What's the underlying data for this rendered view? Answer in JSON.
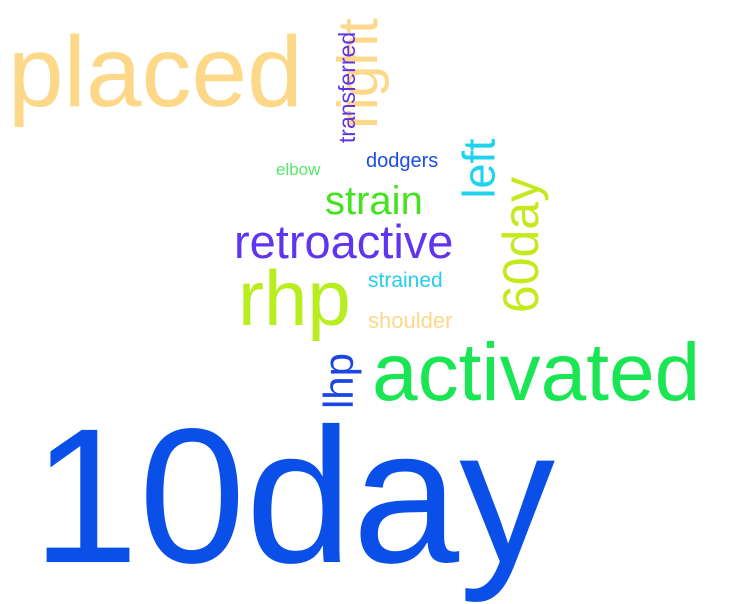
{
  "words": {
    "placed": "placed",
    "right": "right",
    "transferred": "transferred",
    "elbow": "elbow",
    "dodgers": "dodgers",
    "left": "left",
    "strain": "strain",
    "day60": "60day",
    "retroactive": "retroactive",
    "rhp": "rhp",
    "strained": "strained",
    "shoulder": "shoulder",
    "lhp": "lhp",
    "activated": "activated",
    "day10": "10day"
  },
  "colors": {
    "placed": "#fdd889",
    "right": "#fdd88a",
    "transferred": "#6134e6",
    "elbow": "#55e96c",
    "dodgers": "#1a4fe2",
    "left": "#1fd2f0",
    "strain": "#43e41f",
    "day60": "#c4e91d",
    "retroactive": "#5f35ef",
    "rhp": "#b8ee20",
    "strained": "#28cdec",
    "shoulder": "#fdd889",
    "lhp": "#1a46e3",
    "activated": "#1ae553",
    "day10": "#0a4fe7",
    "background": "#ffffff"
  },
  "orientation": {
    "vertical_words": [
      "right",
      "transferred",
      "left",
      "60day",
      "lhp"
    ]
  }
}
